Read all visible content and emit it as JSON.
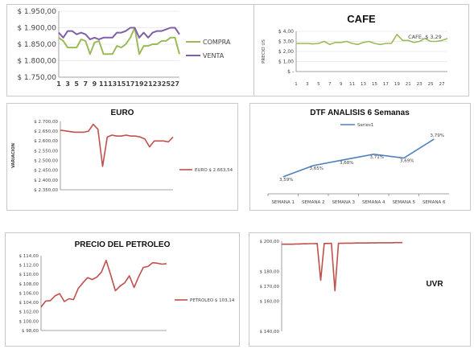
{
  "colors": {
    "green": "#9bbb59",
    "purple": "#7f60a8",
    "red": "#c0504d",
    "blue": "#4f81bd"
  },
  "chart_data": [
    {
      "id": "dolar",
      "type": "line",
      "title": "",
      "x": [
        "1",
        "2",
        "3",
        "4",
        "5",
        "6",
        "7",
        "8",
        "9",
        "10",
        "11",
        "12",
        "13",
        "14",
        "15",
        "16",
        "17",
        "18",
        "19",
        "20",
        "21",
        "22",
        "23",
        "24",
        "25",
        "26",
        "27",
        "28"
      ],
      "x_tick_labels": [
        "1",
        "3",
        "5",
        "7",
        "9",
        "11",
        "13",
        "15",
        "17",
        "19",
        "21",
        "23",
        "25",
        "27"
      ],
      "y_tick_labels": [
        "$ 1.750,00",
        "$ 1.800,00",
        "$ 1.850,00",
        "$ 1.900,00",
        "$ 1.950,00"
      ],
      "ylim": [
        1750,
        1950
      ],
      "legend_position": "right",
      "series": [
        {
          "name": "COMPRA",
          "color": "#9bbb59",
          "values": [
            1870,
            1860,
            1840,
            1840,
            1840,
            1865,
            1860,
            1820,
            1855,
            1860,
            1820,
            1820,
            1820,
            1845,
            1840,
            1850,
            1870,
            1900,
            1820,
            1845,
            1845,
            1850,
            1850,
            1860,
            1860,
            1870,
            1870,
            1820
          ]
        },
        {
          "name": "VENTA",
          "color": "#7f60a8",
          "values": [
            1885,
            1870,
            1890,
            1890,
            1880,
            1885,
            1880,
            1865,
            1870,
            1865,
            1870,
            1870,
            1870,
            1885,
            1885,
            1890,
            1900,
            1900,
            1870,
            1885,
            1870,
            1885,
            1890,
            1890,
            1895,
            1900,
            1900,
            1880
          ]
        }
      ]
    },
    {
      "id": "cafe",
      "type": "line",
      "title": "CAFE",
      "ylabel": "PRECIO US",
      "x_tick_labels": [
        "1",
        "3",
        "5",
        "7",
        "9",
        "11",
        "13",
        "15",
        "17",
        "19",
        "21",
        "23",
        "25",
        "27"
      ],
      "y_tick_labels": [
        "$ -",
        "$ 1,00",
        "$ 2,00",
        "$ 3,00",
        "$ 4,00"
      ],
      "ylim": [
        0,
        4
      ],
      "annotation": "CAFE, $ 3,29",
      "series": [
        {
          "name": "CAFE",
          "color": "#9bbb59",
          "values": [
            2.8,
            2.8,
            2.8,
            2.75,
            2.8,
            3.0,
            2.7,
            2.9,
            2.9,
            3.0,
            2.8,
            2.7,
            2.9,
            3.0,
            2.8,
            2.7,
            2.8,
            2.8,
            3.7,
            3.1,
            3.1,
            2.9,
            3.0,
            3.3,
            3.0,
            3.0,
            3.1,
            3.29
          ]
        }
      ]
    },
    {
      "id": "euro",
      "type": "line",
      "title": "EURO",
      "ylabel": "VARIACION",
      "y_tick_labels": [
        "$ 2.350,00",
        "$ 2.400,00",
        "$ 2.450,00",
        "$ 2.500,00",
        "$ 2.550,00",
        "$ 2.600,00",
        "$ 2.650,00",
        "$ 2.700,00"
      ],
      "ylim": [
        2350,
        2700
      ],
      "legend_position": "right",
      "series": [
        {
          "name": "EURO $ 2.663,54",
          "color": "#c0504d",
          "values": [
            2655,
            2652,
            2648,
            2645,
            2645,
            2645,
            2650,
            2685,
            2660,
            2470,
            2620,
            2630,
            2625,
            2625,
            2630,
            2625,
            2625,
            2620,
            2610,
            2570,
            2600,
            2600,
            2600,
            2595,
            2620
          ]
        }
      ]
    },
    {
      "id": "dtf",
      "type": "line",
      "title": "DTF  ANALISIS 6 Semanas",
      "categories": [
        "SEMANA 1",
        "SEMANA 2",
        "SEMANA 3",
        "SEMANA 4",
        "SEMANA 5",
        "SEMANA 6"
      ],
      "data_labels": [
        "3,59%",
        "3,65%",
        "3,68%",
        "3,71%",
        "3,69%",
        "3,79%"
      ],
      "legend_position": "top",
      "ylim": [
        3.5,
        3.85
      ],
      "series": [
        {
          "name": "Series1",
          "color": "#4f81bd",
          "values": [
            3.59,
            3.65,
            3.68,
            3.71,
            3.69,
            3.79
          ]
        }
      ]
    },
    {
      "id": "petroleo",
      "type": "line",
      "title": "PRECIO DEL PETROLEO",
      "y_tick_labels": [
        "$ 98,00",
        "$ 100,00",
        "$ 102,00",
        "$ 104,00",
        "$ 106,00",
        "$ 108,00",
        "$ 110,00",
        "$ 112,00",
        "$ 114,00"
      ],
      "ylim": [
        98,
        114
      ],
      "legend_position": "right",
      "series": [
        {
          "name": "PETROLEO $ 103,14",
          "color": "#c0504d",
          "values": [
            103.0,
            104.3,
            104.4,
            105.4,
            105.9,
            104.2,
            104.8,
            104.6,
            107.0,
            108.2,
            109.3,
            108.9,
            109.4,
            110.5,
            113.0,
            109.8,
            106.5,
            107.5,
            108.2,
            109.7,
            107.2,
            109.5,
            111.5,
            111.7,
            112.5,
            112.4,
            112.2,
            112.3
          ]
        }
      ]
    },
    {
      "id": "uvr",
      "type": "line",
      "title": "UVR",
      "y_tick_labels": [
        "$ 140,00",
        "$ 160,00",
        "$ 170,00",
        "$ 180,00",
        "$ 200,00"
      ],
      "ylim": [
        140,
        200
      ],
      "series": [
        {
          "name": "UVR",
          "color": "#c0504d",
          "values": [
            198,
            198,
            198,
            198,
            198.2,
            198.2,
            198.3,
            198.3,
            198.4,
            198.4,
            198.5,
            174,
            198.5,
            198.5,
            198.6,
            167,
            198.6,
            198.6,
            198.7,
            198.7,
            198.7,
            198.8,
            198.8,
            198.8,
            198.8,
            198.9,
            198.9,
            199,
            199,
            199,
            199,
            199,
            199.1,
            199.1,
            199.1
          ]
        }
      ]
    }
  ]
}
